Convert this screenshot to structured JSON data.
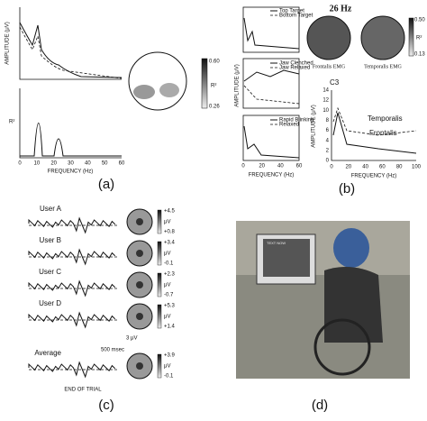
{
  "panel_a": {
    "label": "(a)",
    "y_label_top": "AMPLITUDE (μV)",
    "y_label_bottom": "R²",
    "x_label": "FREQUENCY (Hz)",
    "x_ticks": [
      "0",
      "10",
      "20",
      "30",
      "40",
      "50",
      "60"
    ],
    "colorbar_max": "0.60",
    "colorbar_min": "0.26",
    "colorbar_label": "R²"
  },
  "panel_b": {
    "label": "(b)",
    "legend": [
      "Top Target",
      "Bottom Target",
      "Jaw Clenched",
      "Jaw Relaxed",
      "Rapid Blinking",
      "Relaxed"
    ],
    "y_label": "AMPLITUDE (μV)",
    "x_label": "FREQUENCY (Hz)",
    "x_ticks": [
      "0",
      "20",
      "40",
      "60"
    ],
    "map_title": "26 Hz",
    "map_left": "Frontalis EMG",
    "map_right": "Temporalis EMG",
    "colorbar_max": "0.50",
    "colorbar_min": "0.13",
    "colorbar_label": "R²",
    "c3": {
      "title": "C3",
      "y_label": "AMPLITUDE (μV)",
      "x_label": "FREQUENCY (Hz)",
      "y_ticks": [
        "14",
        "12",
        "10",
        "8",
        "6",
        "4",
        "2",
        "0"
      ],
      "x_ticks": [
        "0",
        "20",
        "40",
        "60",
        "80",
        "100"
      ],
      "annotations": [
        "Temporalis",
        "Frontalis"
      ]
    }
  },
  "panel_c": {
    "label": "(c)",
    "users": [
      {
        "name": "User A",
        "max": "+4.5",
        "min": "+0.8"
      },
      {
        "name": "User B",
        "max": "+3.4",
        "min": "-0.1"
      },
      {
        "name": "User C",
        "max": "+2.3",
        "min": "-0.7"
      },
      {
        "name": "User D",
        "max": "+5.3",
        "min": "+1.4"
      },
      {
        "name": "Average",
        "max": "+3.9",
        "min": "-0.1"
      }
    ],
    "unit": "μV",
    "scale_amplitude": "3 μV",
    "scale_time": "500 msec",
    "end_label": "END OF TRIAL"
  },
  "panel_d": {
    "label": "(d)",
    "screen_text": "TEXT NOW"
  }
}
